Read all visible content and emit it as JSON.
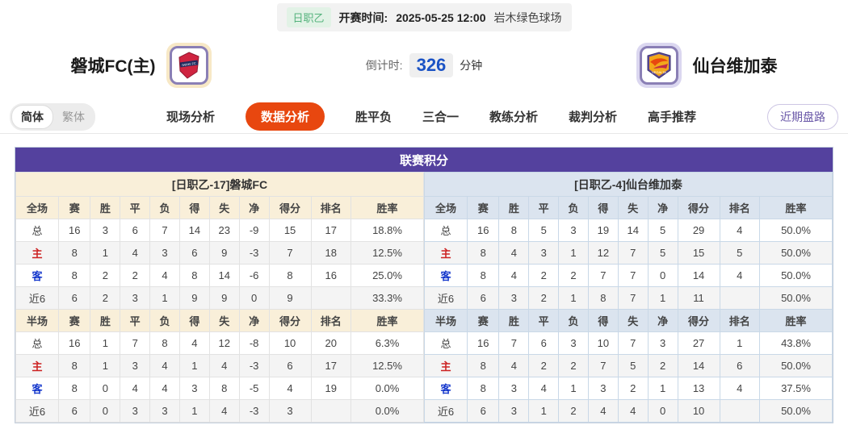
{
  "top_bar": {
    "league_badge": "日职乙",
    "kickoff_label": "开赛时间:",
    "kickoff_time": "2025-05-25 12:00",
    "venue": "岩木绿色球场"
  },
  "header": {
    "home_team": "磐城FC(主)",
    "away_team": "仙台维加泰",
    "countdown_label": "倒计时:",
    "countdown_value": "326",
    "countdown_unit": "分钟"
  },
  "tab_bar": {
    "lang_simplified": "简体",
    "lang_traditional": "繁体",
    "tabs": [
      {
        "label": "现场分析",
        "active": false
      },
      {
        "label": "数据分析",
        "active": true
      },
      {
        "label": "胜平负",
        "active": false
      },
      {
        "label": "三合一",
        "active": false
      },
      {
        "label": "教练分析",
        "active": false
      },
      {
        "label": "裁判分析",
        "active": false
      },
      {
        "label": "高手推荐",
        "active": false
      }
    ],
    "recent_trend_button": "近期盘路"
  },
  "table": {
    "title": "联赛积分",
    "left": {
      "team_header": "[日职乙-17]磐城FC",
      "full": {
        "columns": [
          "全场",
          "赛",
          "胜",
          "平",
          "负",
          "得",
          "失",
          "净",
          "得分",
          "排名",
          "胜率"
        ],
        "rows": [
          {
            "label": "总",
            "type": "total",
            "values": [
              "16",
              "3",
              "6",
              "7",
              "14",
              "23",
              "-9",
              "15",
              "17",
              "18.8%"
            ]
          },
          {
            "label": "主",
            "type": "home",
            "values": [
              "8",
              "1",
              "4",
              "3",
              "6",
              "9",
              "-3",
              "7",
              "18",
              "12.5%"
            ]
          },
          {
            "label": "客",
            "type": "away",
            "values": [
              "8",
              "2",
              "2",
              "4",
              "8",
              "14",
              "-6",
              "8",
              "16",
              "25.0%"
            ]
          },
          {
            "label": "近6",
            "type": "recent",
            "values": [
              "6",
              "2",
              "3",
              "1",
              "9",
              "9",
              "0",
              "9",
              "",
              "33.3%"
            ]
          }
        ]
      },
      "half": {
        "columns": [
          "半场",
          "赛",
          "胜",
          "平",
          "负",
          "得",
          "失",
          "净",
          "得分",
          "排名",
          "胜率"
        ],
        "rows": [
          {
            "label": "总",
            "type": "total",
            "values": [
              "16",
              "1",
              "7",
              "8",
              "4",
              "12",
              "-8",
              "10",
              "20",
              "6.3%"
            ]
          },
          {
            "label": "主",
            "type": "home",
            "values": [
              "8",
              "1",
              "3",
              "4",
              "1",
              "4",
              "-3",
              "6",
              "17",
              "12.5%"
            ]
          },
          {
            "label": "客",
            "type": "away",
            "values": [
              "8",
              "0",
              "4",
              "4",
              "3",
              "8",
              "-5",
              "4",
              "19",
              "0.0%"
            ]
          },
          {
            "label": "近6",
            "type": "recent",
            "values": [
              "6",
              "0",
              "3",
              "3",
              "1",
              "4",
              "-3",
              "3",
              "",
              "0.0%"
            ]
          }
        ]
      }
    },
    "right": {
      "team_header": "[日职乙-4]仙台维加泰",
      "full": {
        "columns": [
          "全场",
          "赛",
          "胜",
          "平",
          "负",
          "得",
          "失",
          "净",
          "得分",
          "排名",
          "胜率"
        ],
        "rows": [
          {
            "label": "总",
            "type": "total",
            "values": [
              "16",
              "8",
              "5",
              "3",
              "19",
              "14",
              "5",
              "29",
              "4",
              "50.0%"
            ]
          },
          {
            "label": "主",
            "type": "home",
            "values": [
              "8",
              "4",
              "3",
              "1",
              "12",
              "7",
              "5",
              "15",
              "5",
              "50.0%"
            ]
          },
          {
            "label": "客",
            "type": "away",
            "values": [
              "8",
              "4",
              "2",
              "2",
              "7",
              "7",
              "0",
              "14",
              "4",
              "50.0%"
            ]
          },
          {
            "label": "近6",
            "type": "recent",
            "values": [
              "6",
              "3",
              "2",
              "1",
              "8",
              "7",
              "1",
              "11",
              "",
              "50.0%"
            ]
          }
        ]
      },
      "half": {
        "columns": [
          "半场",
          "赛",
          "胜",
          "平",
          "负",
          "得",
          "失",
          "净",
          "得分",
          "排名",
          "胜率"
        ],
        "rows": [
          {
            "label": "总",
            "type": "total",
            "values": [
              "16",
              "7",
              "6",
              "3",
              "10",
              "7",
              "3",
              "27",
              "1",
              "43.8%"
            ]
          },
          {
            "label": "主",
            "type": "home",
            "values": [
              "8",
              "4",
              "2",
              "2",
              "7",
              "5",
              "2",
              "14",
              "6",
              "50.0%"
            ]
          },
          {
            "label": "客",
            "type": "away",
            "values": [
              "8",
              "3",
              "4",
              "1",
              "3",
              "2",
              "1",
              "13",
              "4",
              "37.5%"
            ]
          },
          {
            "label": "近6",
            "type": "recent",
            "values": [
              "6",
              "3",
              "1",
              "2",
              "4",
              "4",
              "0",
              "10",
              "",
              "50.0%"
            ]
          }
        ]
      }
    }
  },
  "colors": {
    "title_bar_purple": "#54419e",
    "active_tab_orange": "#e8470f",
    "home_label_red": "#cc2222",
    "away_label_blue": "#1437cc",
    "countdown_blue": "#1b53c5",
    "badge_green": "#54b27c",
    "left_header_cream": "#f9efd9",
    "right_header_blue": "#dbe4ef"
  }
}
